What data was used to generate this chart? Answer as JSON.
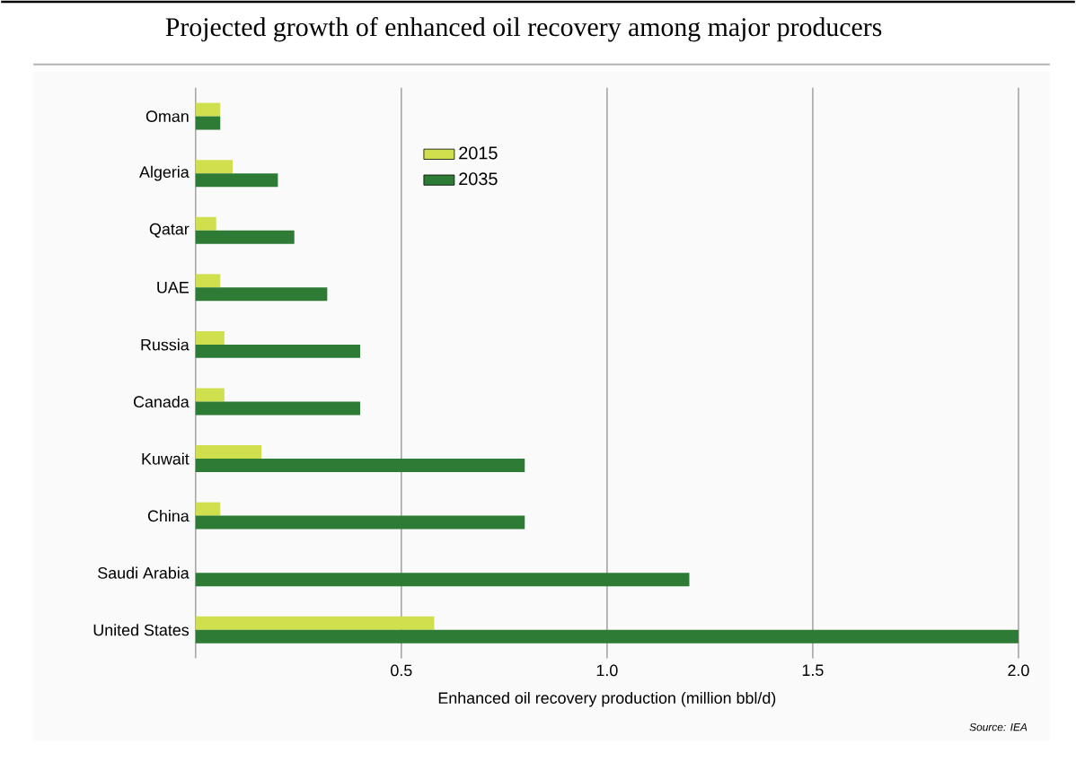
{
  "chart_data": {
    "type": "bar",
    "orientation": "horizontal",
    "title": "Projected growth of enhanced oil recovery among major producers",
    "xlabel": "Enhanced oil recovery production (million bbl/d)",
    "annotations": [
      "Source: IEA"
    ],
    "categories": [
      "Oman",
      "Algeria",
      "Qatar",
      "UAE",
      "Russia",
      "Canada",
      "Kuwait",
      "China",
      "Saudi Arabia",
      "United States"
    ],
    "series": [
      {
        "name": "2015",
        "color": "#cfdf4e",
        "values": [
          0.06,
          0.09,
          0.05,
          0.06,
          0.07,
          0.07,
          0.16,
          0.06,
          0,
          0.58
        ]
      },
      {
        "name": "2035",
        "color": "#2e7b36",
        "values": [
          0.06,
          0.2,
          0.24,
          0.32,
          0.4,
          0.4,
          0.8,
          0.8,
          1.2,
          2.0
        ]
      }
    ],
    "xlim": [
      0,
      2
    ],
    "xticks": [
      0.5,
      {
        "value": 1,
        "label": "1.0"
      },
      {
        "value": 1.5,
        "label": "1.5"
      },
      {
        "value": 2,
        "label": "2.0"
      }
    ],
    "grid": "x",
    "legend": "top"
  }
}
